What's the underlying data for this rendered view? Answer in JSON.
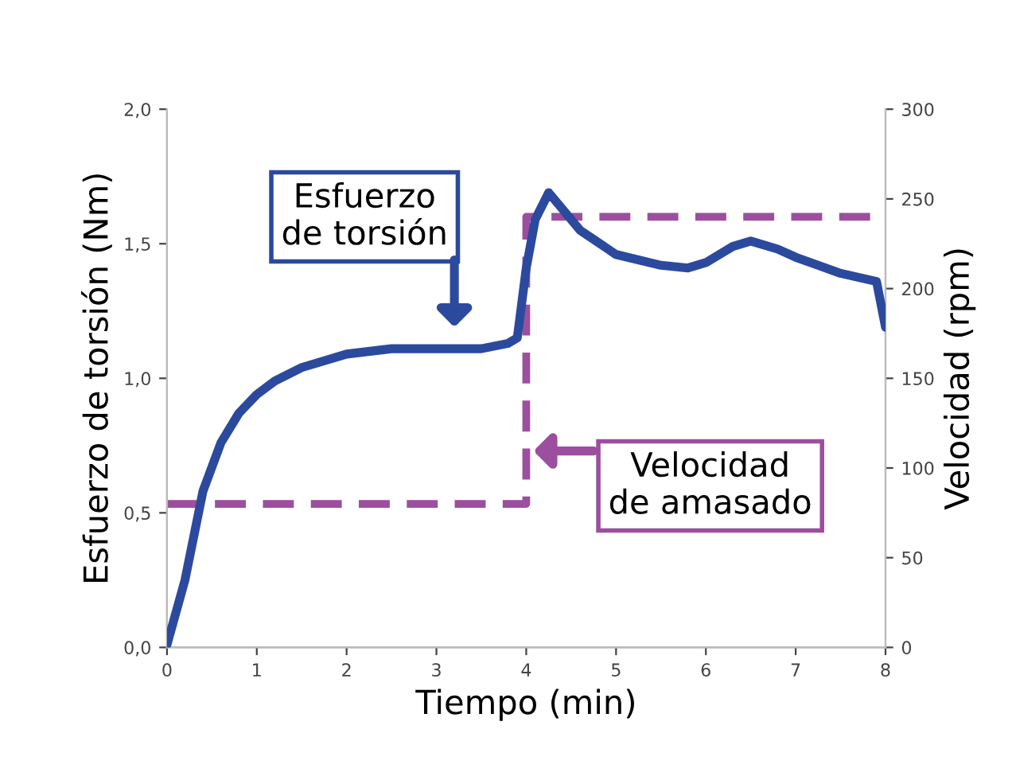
{
  "chart_data": {
    "type": "line",
    "xlabel": "Tiempo (min)",
    "ylabel": "Esfuerzo de torsión (Nm)",
    "y2label": "Velocidad (rpm)",
    "xlim": [
      0,
      8
    ],
    "xticks": [
      0,
      1,
      2,
      3,
      4,
      5,
      6,
      7,
      8
    ],
    "ylim": [
      0,
      2
    ],
    "yticks": [
      {
        "value": 0,
        "label": "0,0"
      },
      {
        "value": 0.5,
        "label": "0,5"
      },
      {
        "value": 1,
        "label": "1,0"
      },
      {
        "value": 1.5,
        "label": "1,5"
      },
      {
        "value": 2,
        "label": "2,0"
      }
    ],
    "y2lim": [
      0,
      300
    ],
    "y2ticks": [
      0,
      50,
      100,
      150,
      200,
      250,
      300
    ],
    "grid": false,
    "legend": false,
    "series": [
      {
        "color": "#2b4a9e",
        "line_style": "solid",
        "x": [
          0,
          0.2,
          0.4,
          0.6,
          0.8,
          1.0,
          1.2,
          1.5,
          2.0,
          2.5,
          3.0,
          3.5,
          3.8,
          3.9,
          4.0,
          4.1,
          4.25,
          4.4,
          4.6,
          5.0,
          5.5,
          5.8,
          6.0,
          6.3,
          6.5,
          6.8,
          7.0,
          7.5,
          7.9,
          8.0
        ],
        "values": [
          0.01,
          0.25,
          0.58,
          0.76,
          0.87,
          0.94,
          0.99,
          1.04,
          1.09,
          1.11,
          1.11,
          1.11,
          1.13,
          1.15,
          1.41,
          1.59,
          1.69,
          1.63,
          1.55,
          1.46,
          1.42,
          1.41,
          1.43,
          1.49,
          1.51,
          1.48,
          1.45,
          1.39,
          1.36,
          1.19
        ]
      },
      {
        "type": "step",
        "axis": "y2",
        "color": "#9b4f9e",
        "line_style": "dashed",
        "x": [
          0,
          4,
          8
        ],
        "values": [
          80,
          240,
          240
        ]
      }
    ],
    "annotations": [
      "Esfuerzo\nde torsión",
      "Velocidad\nde amasado"
    ]
  }
}
